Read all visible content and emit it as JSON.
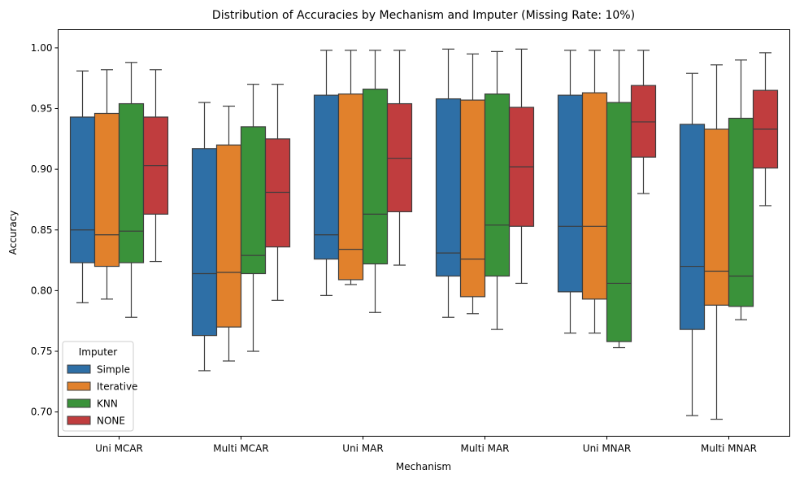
{
  "chart_data": {
    "type": "box",
    "title": "Distribution of Accuracies by Mechanism and Imputer (Missing Rate: 10%)",
    "xlabel": "Mechanism",
    "ylabel": "Accuracy",
    "ylim": [
      0.68,
      1.015
    ],
    "yticks": [
      0.7,
      0.75,
      0.8,
      0.85,
      0.9,
      0.95,
      1.0
    ],
    "ytick_labels": [
      "0.70",
      "0.75",
      "0.80",
      "0.85",
      "0.90",
      "0.95",
      "1.00"
    ],
    "categories": [
      "Uni MCAR",
      "Multi MCAR",
      "Uni MAR",
      "Multi MAR",
      "Uni MNAR",
      "Multi MNAR"
    ],
    "grid": false,
    "legend": {
      "title": "Imputer",
      "position": "lower-left"
    },
    "series": [
      {
        "name": "Simple",
        "color": "#2e6fa6",
        "boxes": [
          {
            "whislo": 0.79,
            "q1": 0.823,
            "med": 0.85,
            "q3": 0.943,
            "whishi": 0.981
          },
          {
            "whislo": 0.734,
            "q1": 0.763,
            "med": 0.814,
            "q3": 0.917,
            "whishi": 0.955
          },
          {
            "whislo": 0.796,
            "q1": 0.826,
            "med": 0.846,
            "q3": 0.961,
            "whishi": 0.998
          },
          {
            "whislo": 0.778,
            "q1": 0.812,
            "med": 0.831,
            "q3": 0.958,
            "whishi": 0.999
          },
          {
            "whislo": 0.765,
            "q1": 0.799,
            "med": 0.853,
            "q3": 0.961,
            "whishi": 0.998
          },
          {
            "whislo": 0.697,
            "q1": 0.768,
            "med": 0.82,
            "q3": 0.937,
            "whishi": 0.979
          }
        ]
      },
      {
        "name": "Iterative",
        "color": "#e1812c",
        "boxes": [
          {
            "whislo": 0.793,
            "q1": 0.82,
            "med": 0.846,
            "q3": 0.946,
            "whishi": 0.982
          },
          {
            "whislo": 0.742,
            "q1": 0.77,
            "med": 0.815,
            "q3": 0.92,
            "whishi": 0.952
          },
          {
            "whislo": 0.805,
            "q1": 0.809,
            "med": 0.834,
            "q3": 0.962,
            "whishi": 0.998
          },
          {
            "whislo": 0.781,
            "q1": 0.795,
            "med": 0.826,
            "q3": 0.957,
            "whishi": 0.995
          },
          {
            "whislo": 0.765,
            "q1": 0.793,
            "med": 0.853,
            "q3": 0.963,
            "whishi": 0.998
          },
          {
            "whislo": 0.694,
            "q1": 0.788,
            "med": 0.816,
            "q3": 0.933,
            "whishi": 0.986
          }
        ]
      },
      {
        "name": "KNN",
        "color": "#3a923a",
        "boxes": [
          {
            "whislo": 0.778,
            "q1": 0.823,
            "med": 0.849,
            "q3": 0.954,
            "whishi": 0.988
          },
          {
            "whislo": 0.75,
            "q1": 0.814,
            "med": 0.829,
            "q3": 0.935,
            "whishi": 0.97
          },
          {
            "whislo": 0.782,
            "q1": 0.822,
            "med": 0.863,
            "q3": 0.966,
            "whishi": 0.998
          },
          {
            "whislo": 0.768,
            "q1": 0.812,
            "med": 0.854,
            "q3": 0.962,
            "whishi": 0.997
          },
          {
            "whislo": 0.753,
            "q1": 0.758,
            "med": 0.806,
            "q3": 0.955,
            "whishi": 0.998
          },
          {
            "whislo": 0.776,
            "q1": 0.787,
            "med": 0.812,
            "q3": 0.942,
            "whishi": 0.99
          }
        ]
      },
      {
        "name": "NONE",
        "color": "#c03d3e",
        "boxes": [
          {
            "whislo": 0.824,
            "q1": 0.863,
            "med": 0.903,
            "q3": 0.943,
            "whishi": 0.982
          },
          {
            "whislo": 0.792,
            "q1": 0.836,
            "med": 0.881,
            "q3": 0.925,
            "whishi": 0.97
          },
          {
            "whislo": 0.821,
            "q1": 0.865,
            "med": 0.909,
            "q3": 0.954,
            "whishi": 0.998
          },
          {
            "whislo": 0.806,
            "q1": 0.853,
            "med": 0.902,
            "q3": 0.951,
            "whishi": 0.999
          },
          {
            "whislo": 0.88,
            "q1": 0.91,
            "med": 0.939,
            "q3": 0.969,
            "whishi": 0.998
          },
          {
            "whislo": 0.87,
            "q1": 0.901,
            "med": 0.933,
            "q3": 0.965,
            "whishi": 0.996
          }
        ]
      }
    ]
  }
}
